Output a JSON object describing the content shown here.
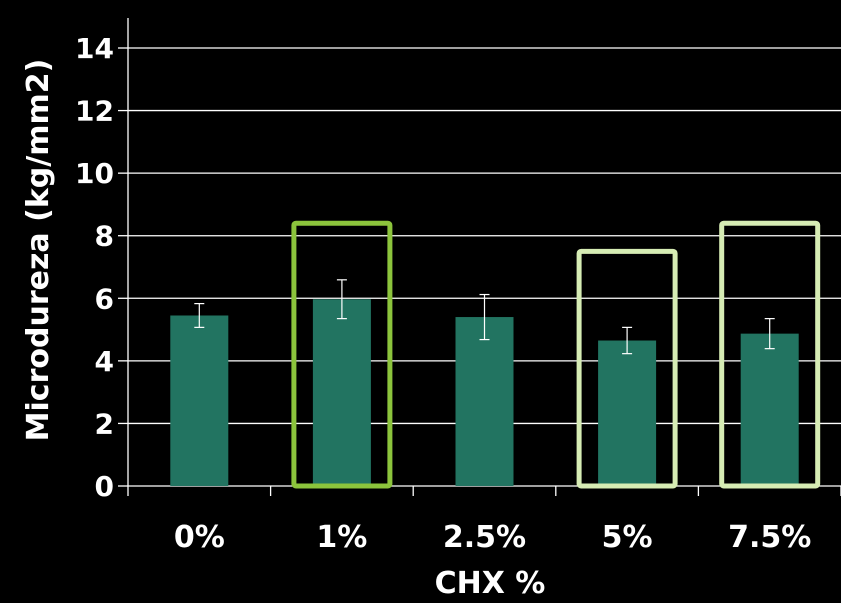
{
  "chart_data": {
    "type": "bar",
    "xlabel": "CHX %",
    "ylabel": "Microdureza (kg/mm2)",
    "categories": [
      "0%",
      "1%",
      "2.5%",
      "5%",
      "7.5%"
    ],
    "values": [
      5.45,
      5.97,
      5.4,
      4.65,
      4.87
    ],
    "errors": [
      0.38,
      0.62,
      0.72,
      0.42,
      0.48
    ],
    "ylim": [
      0,
      14
    ],
    "yticks": [
      0,
      2,
      4,
      6,
      8,
      10,
      12,
      14
    ],
    "ytick_labels": [
      "0",
      "2",
      "4",
      "6",
      "8",
      "10",
      "12",
      "14"
    ],
    "grid": true,
    "colors": {
      "background": "#000000",
      "bar": "#227461",
      "grid": "#ffffff",
      "text": "#ffffff",
      "highlight_strong": "#8cc43c",
      "highlight_light": "#d6ecb4"
    },
    "highlights": [
      {
        "category": "1%",
        "style": "highlight_strong",
        "top": 8.4
      },
      {
        "category": "5%",
        "style": "highlight_light",
        "top": 7.5
      },
      {
        "category": "7.5%",
        "style": "highlight_light",
        "top": 8.4
      }
    ]
  }
}
